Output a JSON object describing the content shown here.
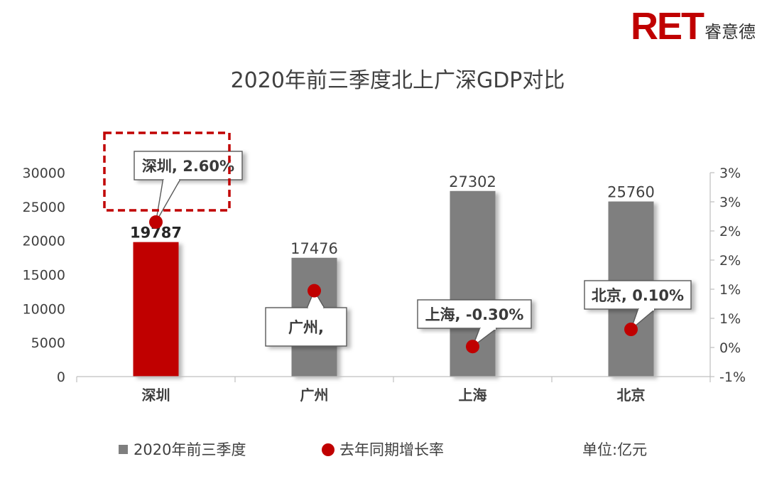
{
  "brand": {
    "logo_text": "RET",
    "name_cn": "睿意德"
  },
  "chart_data": {
    "type": "bar",
    "title": "2020年前三季度北上广深GDP对比",
    "categories": [
      "深圳",
      "广州",
      "上海",
      "北京"
    ],
    "series": [
      {
        "name": "2020年前三季度",
        "kind": "bar",
        "axis": "left",
        "values": [
          19787,
          17476,
          27302,
          25760
        ]
      },
      {
        "name": "去年同期增长率",
        "kind": "scatter",
        "axis": "right",
        "values": [
          2.6,
          1.0,
          -0.3,
          0.1
        ]
      }
    ],
    "value_labels": [
      "19787",
      "17476",
      "27302",
      "25760"
    ],
    "left_axis": {
      "ylim": [
        0,
        30000
      ],
      "ticks": [
        "0",
        "5000",
        "10000",
        "15000",
        "20000",
        "25000",
        "30000"
      ]
    },
    "right_axis": {
      "ylim": [
        -1,
        3.75
      ],
      "ticks": [
        "-1%",
        "0%",
        "1%",
        "1%",
        "2%",
        "2%",
        "3%",
        "3%"
      ]
    },
    "callouts": [
      "深圳, 2.60%",
      "广州,",
      "上海, -0.30%",
      "北京, 0.10%"
    ],
    "legend": {
      "bar_label": "2020年前三季度",
      "dot_label": "去年同期增长率",
      "unit": "单位:亿元"
    },
    "colors": {
      "highlight": "#c00000",
      "bar": "#7f7f7f",
      "dot": "#c00000",
      "axis": "#bfbfbf",
      "text": "#404040"
    }
  }
}
